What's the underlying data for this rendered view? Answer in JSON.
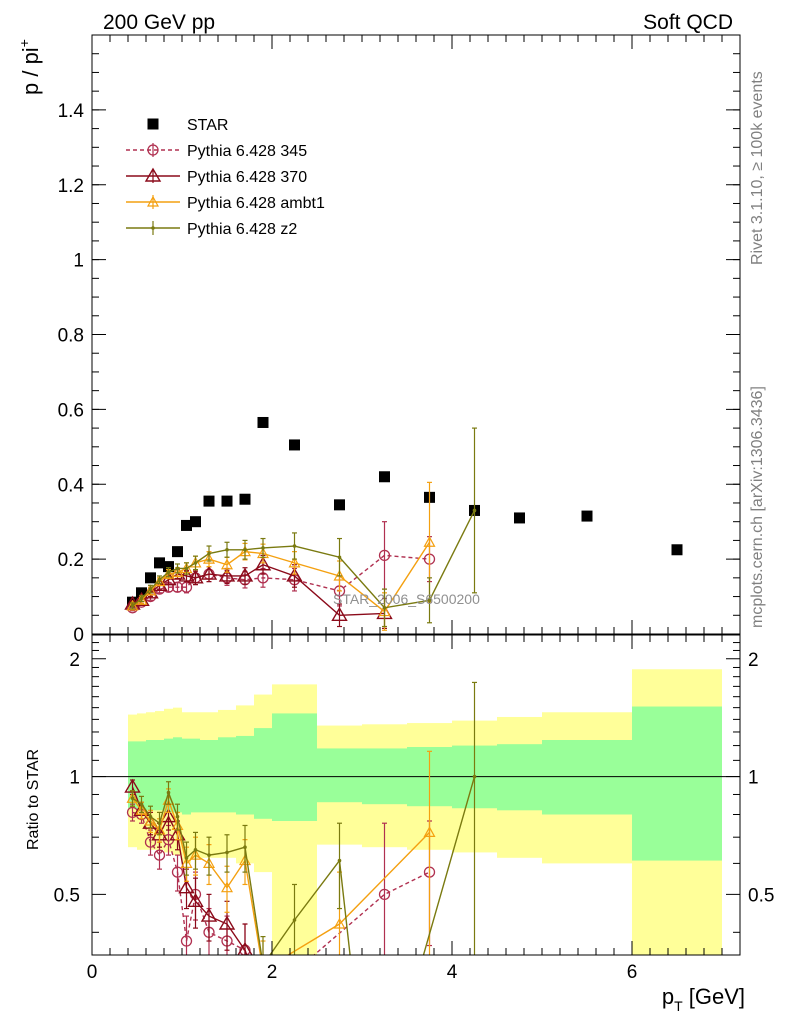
{
  "header": {
    "left": "200 GeV pp",
    "right": "Soft QCD"
  },
  "side_text": {
    "rivet": "Rivet 3.1.10, ≥ 100k events",
    "mcplots": "mcplots.cern.ch [arXiv:1306.3436]"
  },
  "watermark": "STAR_2006_S6500200",
  "colors": {
    "star": "#000000",
    "p345": "#b03050",
    "p370": "#8b0a1a",
    "ambt1": "#f4a010",
    "z2": "#7a7a10",
    "band_inner": "#99ff99",
    "band_outer": "#ffff99"
  },
  "chart_data": [
    {
      "type": "scatter",
      "panel": "main",
      "ylabel_base": "p / pi",
      "ylabel_sup": "+",
      "xlim": [
        0,
        7.2
      ],
      "ylim": [
        0,
        1.6
      ],
      "yticks": [
        0,
        0.2,
        0.4,
        0.6,
        0.8,
        1,
        1.2,
        1.4
      ],
      "ytick_labels": [
        "0",
        "0.2",
        "0.4",
        "0.6",
        "0.8",
        "1",
        "1.2",
        "1.4"
      ],
      "legend_position": "top-left",
      "series": [
        {
          "name": "STAR",
          "key": "star",
          "marker": "square",
          "line": "none",
          "x": [
            0.45,
            0.55,
            0.65,
            0.75,
            0.85,
            0.95,
            1.05,
            1.15,
            1.3,
            1.5,
            1.7,
            1.9,
            2.25,
            2.75,
            3.25,
            3.75,
            4.25,
            4.75,
            5.5,
            6.5
          ],
          "y": [
            0.085,
            0.11,
            0.15,
            0.19,
            0.18,
            0.22,
            0.29,
            0.3,
            0.355,
            0.355,
            0.36,
            0.565,
            0.505,
            0.345,
            0.42,
            0.365,
            0.33,
            0.31,
            0.315,
            0.225
          ]
        },
        {
          "name": "Pythia 6.428 345",
          "key": "p345",
          "marker": "circle-open",
          "line": "dashed",
          "x": [
            0.45,
            0.55,
            0.65,
            0.75,
            0.85,
            0.95,
            1.05,
            1.15,
            1.3,
            1.5,
            1.7,
            1.9,
            2.25,
            2.75,
            3.25,
            3.75
          ],
          "y": [
            0.07,
            0.085,
            0.1,
            0.12,
            0.125,
            0.125,
            0.125,
            0.15,
            0.16,
            0.15,
            0.145,
            0.15,
            0.145,
            0.115,
            0.21,
            0.2
          ],
          "err": [
            0.008,
            0.008,
            0.01,
            0.01,
            0.012,
            0.012,
            0.015,
            0.018,
            0.02,
            0.02,
            0.022,
            0.025,
            0.03,
            0.04,
            0.09,
            0.06
          ]
        },
        {
          "name": "Pythia 6.428 370",
          "key": "p370",
          "marker": "triangle-open",
          "line": "solid",
          "x": [
            0.45,
            0.55,
            0.65,
            0.75,
            0.85,
            0.95,
            1.05,
            1.15,
            1.3,
            1.5,
            1.7,
            1.9,
            2.25,
            2.75,
            3.25
          ],
          "y": [
            0.08,
            0.09,
            0.11,
            0.13,
            0.145,
            0.16,
            0.155,
            0.15,
            0.16,
            0.155,
            0.155,
            0.185,
            0.155,
            0.05,
            0.055
          ],
          "err": [
            0.008,
            0.008,
            0.01,
            0.01,
            0.012,
            0.012,
            0.015,
            0.018,
            0.02,
            0.02,
            0.022,
            0.025,
            0.03,
            0.03,
            0.04
          ]
        },
        {
          "name": "Pythia 6.428 ambt1",
          "key": "ambt1",
          "marker": "triangle-open-small",
          "line": "solid",
          "x": [
            0.45,
            0.55,
            0.65,
            0.75,
            0.85,
            0.95,
            1.05,
            1.15,
            1.3,
            1.5,
            1.7,
            1.9,
            2.25,
            2.75,
            3.25,
            3.75
          ],
          "y": [
            0.075,
            0.09,
            0.115,
            0.14,
            0.16,
            0.165,
            0.175,
            0.19,
            0.2,
            0.185,
            0.22,
            0.215,
            0.19,
            0.155,
            0.06,
            0.245
          ],
          "err": [
            0.008,
            0.008,
            0.01,
            0.01,
            0.012,
            0.012,
            0.015,
            0.018,
            0.02,
            0.02,
            0.022,
            0.025,
            0.03,
            0.04,
            0.05,
            0.16
          ]
        },
        {
          "name": "Pythia 6.428 z2",
          "key": "z2",
          "marker": "dot",
          "line": "solid",
          "x": [
            0.45,
            0.55,
            0.65,
            0.75,
            0.85,
            0.95,
            1.05,
            1.15,
            1.3,
            1.5,
            1.7,
            1.9,
            2.25,
            2.75,
            3.25,
            3.75,
            4.25
          ],
          "y": [
            0.075,
            0.095,
            0.12,
            0.145,
            0.165,
            0.175,
            0.175,
            0.19,
            0.215,
            0.225,
            0.225,
            0.23,
            0.235,
            0.205,
            0.07,
            0.09,
            0.33
          ],
          "err": [
            0.008,
            0.008,
            0.01,
            0.01,
            0.012,
            0.012,
            0.015,
            0.018,
            0.02,
            0.02,
            0.025,
            0.025,
            0.035,
            0.05,
            0.05,
            0.06,
            0.22
          ]
        }
      ]
    },
    {
      "type": "scatter",
      "panel": "ratio",
      "ylabel": "Ratio to STAR",
      "xlabel_base": "p",
      "xlabel_sub": "T",
      "xlabel_unit": " [GeV]",
      "xlim": [
        0,
        7.2
      ],
      "ylim": [
        0.35,
        2.3
      ],
      "xticks": [
        0,
        2,
        4,
        6
      ],
      "xtick_labels": [
        "0",
        "2",
        "4",
        "6"
      ],
      "yticks": [
        0.5,
        1,
        2
      ],
      "ytick_labels": [
        "0.5",
        "1",
        "2"
      ],
      "reference_line": 1,
      "bands": {
        "edges": [
          0.4,
          0.5,
          0.6,
          0.7,
          0.8,
          0.9,
          1.0,
          1.1,
          1.2,
          1.4,
          1.6,
          1.8,
          2.0,
          2.5,
          3.0,
          3.5,
          4.0,
          4.5,
          5.0,
          6.0,
          7.0
        ],
        "inner_lo": [
          0.83,
          0.82,
          0.82,
          0.82,
          0.81,
          0.81,
          0.8,
          0.81,
          0.81,
          0.81,
          0.8,
          0.78,
          0.77,
          0.86,
          0.85,
          0.84,
          0.83,
          0.82,
          0.8,
          0.61
        ],
        "inner_hi": [
          1.23,
          1.23,
          1.24,
          1.24,
          1.25,
          1.26,
          1.25,
          1.25,
          1.24,
          1.26,
          1.27,
          1.33,
          1.45,
          1.18,
          1.18,
          1.19,
          1.2,
          1.21,
          1.24,
          1.51
        ],
        "outer_lo": [
          0.66,
          0.65,
          0.65,
          0.65,
          0.64,
          0.63,
          0.6,
          0.62,
          0.62,
          0.62,
          0.6,
          0.57,
          0.35,
          0.67,
          0.66,
          0.65,
          0.64,
          0.62,
          0.6,
          0.35
        ],
        "outer_hi": [
          1.44,
          1.45,
          1.46,
          1.47,
          1.49,
          1.5,
          1.46,
          1.46,
          1.46,
          1.48,
          1.52,
          1.62,
          1.72,
          1.35,
          1.36,
          1.37,
          1.39,
          1.42,
          1.46,
          1.88
        ]
      },
      "series": [
        {
          "key": "p345",
          "x": [
            0.45,
            0.55,
            0.65,
            0.75,
            0.85,
            0.95,
            1.05,
            1.15,
            1.3,
            1.5,
            1.7,
            1.9,
            3.25,
            3.75
          ],
          "y": [
            0.81,
            0.8,
            0.68,
            0.63,
            0.69,
            0.57,
            0.38,
            0.5,
            0.4,
            0.38,
            0.36,
            0.27,
            0.5,
            0.57
          ],
          "err": [
            0.04,
            0.04,
            0.05,
            0.05,
            0.06,
            0.06,
            0.06,
            0.07,
            0.06,
            0.06,
            0.06,
            0.05,
            0.26,
            0.2
          ]
        },
        {
          "key": "p370",
          "x": [
            0.45,
            0.55,
            0.65,
            0.75,
            0.85,
            0.95,
            1.05,
            1.15,
            1.3,
            1.5,
            1.7,
            1.9
          ],
          "y": [
            0.94,
            0.82,
            0.76,
            0.71,
            0.79,
            0.71,
            0.52,
            0.48,
            0.44,
            0.42,
            0.36,
            0.27
          ],
          "err": [
            0.04,
            0.04,
            0.05,
            0.05,
            0.06,
            0.06,
            0.06,
            0.07,
            0.06,
            0.06,
            0.06,
            0.05
          ]
        },
        {
          "key": "ambt1",
          "x": [
            0.45,
            0.55,
            0.65,
            0.75,
            0.85,
            0.95,
            1.05,
            1.15,
            1.3,
            1.5,
            1.7,
            1.9,
            2.75,
            3.75
          ],
          "y": [
            0.88,
            0.82,
            0.77,
            0.73,
            0.87,
            0.75,
            0.6,
            0.63,
            0.6,
            0.52,
            0.61,
            0.32,
            0.42,
            0.72
          ],
          "err": [
            0.04,
            0.04,
            0.05,
            0.05,
            0.06,
            0.06,
            0.06,
            0.07,
            0.07,
            0.07,
            0.08,
            0.06,
            0.15,
            0.44
          ]
        },
        {
          "key": "z2",
          "x": [
            0.45,
            0.55,
            0.65,
            0.75,
            0.85,
            0.95,
            1.05,
            1.15,
            1.3,
            1.5,
            1.7,
            1.9,
            2.25,
            2.75,
            2.9,
            3.6,
            4.25
          ],
          "y": [
            0.88,
            0.85,
            0.79,
            0.76,
            0.91,
            0.79,
            0.62,
            0.65,
            0.63,
            0.64,
            0.66,
            0.33,
            0.43,
            0.61,
            0.3,
            0.3,
            1.0
          ],
          "err": [
            0.04,
            0.04,
            0.05,
            0.05,
            0.06,
            0.06,
            0.06,
            0.07,
            0.07,
            0.07,
            0.09,
            0.06,
            0.1,
            0.15,
            0,
            0,
            0.74
          ]
        }
      ]
    }
  ]
}
